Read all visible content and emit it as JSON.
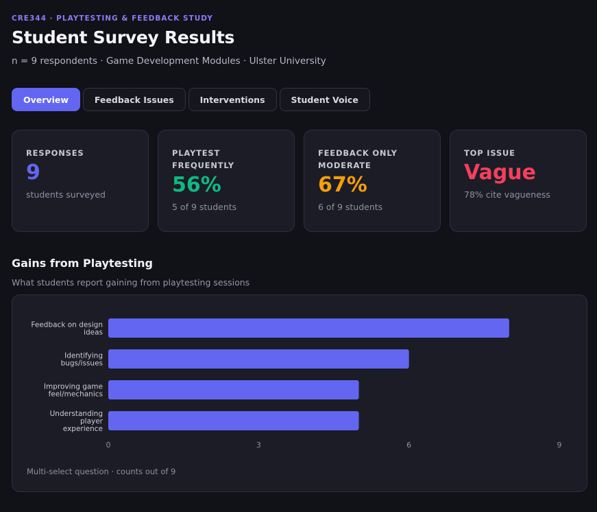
{
  "header": {
    "eyebrow": "CRE344 · PLAYTESTING & FEEDBACK STUDY",
    "title": "Student Survey Results",
    "subtitle": "n = 9 respondents · Game Development Modules · Ulster University"
  },
  "tabs": [
    {
      "label": "Overview",
      "active": true
    },
    {
      "label": "Feedback Issues",
      "active": false
    },
    {
      "label": "Interventions",
      "active": false
    },
    {
      "label": "Student Voice",
      "active": false
    }
  ],
  "cards": [
    {
      "label": "RESPONSES",
      "value": "9",
      "note": "students surveyed",
      "color": "#6366f1"
    },
    {
      "label": "PLAYTEST FREQUENTLY",
      "value": "56%",
      "note": "5 of 9 students",
      "color": "#10b981"
    },
    {
      "label": "FEEDBACK ONLY MODERATE",
      "value": "67%",
      "note": "6 of 9 students",
      "color": "#f59e0b"
    },
    {
      "label": "TOP ISSUE",
      "value": "Vague",
      "note": "78% cite vagueness",
      "color": "#f43f5e"
    }
  ],
  "section": {
    "title": "Gains from Playtesting",
    "subtitle": "What students report gaining from playtesting sessions"
  },
  "chart_note": "Multi-select question · counts out of 9",
  "chart_data": {
    "type": "bar",
    "orientation": "horizontal",
    "categories": [
      [
        "Feedback on design",
        "ideas"
      ],
      [
        "Identifying",
        "bugs/issues"
      ],
      [
        "Improving game",
        "feel/mechanics"
      ],
      [
        "Understanding",
        "player",
        "experience"
      ]
    ],
    "values": [
      8,
      6,
      5,
      5
    ],
    "xlim": [
      0,
      9
    ],
    "xticks": [
      "0",
      "3",
      "6",
      "9"
    ],
    "bar_color": "#6366f1",
    "grid": false
  }
}
